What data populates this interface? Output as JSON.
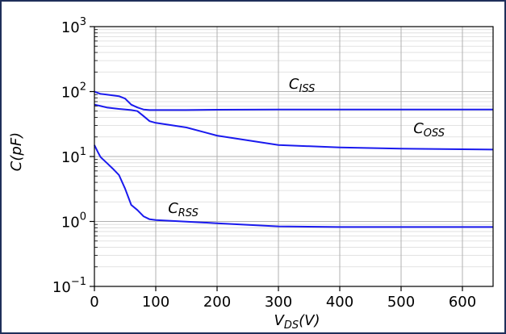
{
  "chart_data": {
    "type": "line",
    "xlabel": "V",
    "xlabel_sub": "DS",
    "xlabel_unit": "(V)",
    "ylabel": "C(pF)",
    "xlim": [
      0,
      650
    ],
    "ylim": [
      0.1,
      1000
    ],
    "yscale": "log",
    "grid": true,
    "x_ticks": [
      {
        "value": 0,
        "label": "0"
      },
      {
        "value": 100,
        "label": "100"
      },
      {
        "value": 200,
        "label": "200"
      },
      {
        "value": 300,
        "label": "300"
      },
      {
        "value": 400,
        "label": "400"
      },
      {
        "value": 500,
        "label": "500"
      },
      {
        "value": 600,
        "label": "600"
      }
    ],
    "y_ticks": [
      {
        "value": 0.1,
        "base": "10",
        "exp": "−1"
      },
      {
        "value": 1,
        "base": "10",
        "exp": "0"
      },
      {
        "value": 10,
        "base": "10",
        "exp": "1"
      },
      {
        "value": 100,
        "base": "10",
        "exp": "2"
      },
      {
        "value": 1000,
        "base": "10",
        "exp": "3"
      }
    ],
    "line_color": "#1a1aee",
    "series": [
      {
        "name": "C",
        "name_sub": "ISS",
        "label_at": [
          317,
          110
        ],
        "x": [
          0,
          10,
          20,
          40,
          50,
          60,
          70,
          80,
          90,
          100,
          150,
          200,
          300,
          400,
          500,
          650
        ],
        "y": [
          100,
          92,
          90,
          85,
          78,
          63,
          57,
          53,
          52,
          52,
          52,
          52.5,
          53,
          53,
          53,
          53
        ]
      },
      {
        "name": "C",
        "name_sub": "OSS",
        "label_at": [
          520,
          23
        ],
        "x": [
          0,
          10,
          20,
          40,
          60,
          70,
          80,
          90,
          100,
          150,
          200,
          300,
          400,
          500,
          650
        ],
        "y": [
          63,
          60,
          57,
          54,
          52,
          50,
          42,
          35,
          33,
          28,
          21,
          15,
          13.8,
          13.2,
          12.8
        ]
      },
      {
        "name": "C",
        "name_sub": "RSS",
        "label_at": [
          120,
          1.35
        ],
        "x": [
          0,
          5,
          10,
          20,
          30,
          40,
          50,
          55,
          60,
          70,
          80,
          90,
          100,
          200,
          300,
          400,
          500,
          650
        ],
        "y": [
          15,
          12,
          9.8,
          8,
          6.5,
          5.2,
          3.2,
          2.4,
          1.8,
          1.5,
          1.2,
          1.08,
          1.05,
          0.94,
          0.84,
          0.82,
          0.82,
          0.82
        ]
      }
    ]
  }
}
